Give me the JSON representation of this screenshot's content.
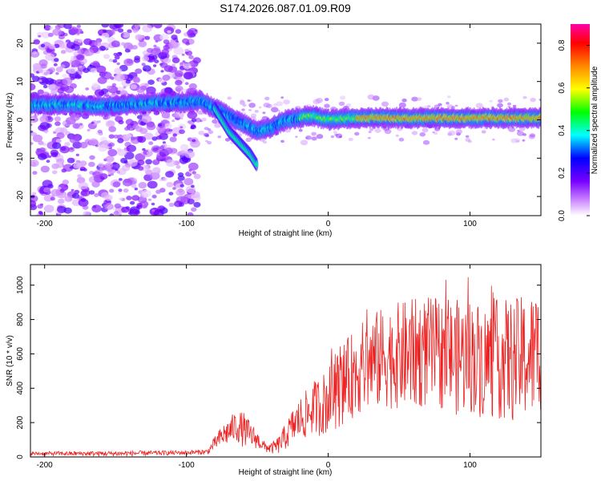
{
  "title": "S174.2026.087.01.09.R09",
  "chart_data": [
    {
      "type": "heatmap",
      "name": "spectrogram",
      "xlabel": "Height of straight line (km)",
      "ylabel": "Frequency (Hz)",
      "xlim": [
        -210,
        150
      ],
      "ylim": [
        -25,
        25
      ],
      "xticks": [
        -200,
        -100,
        0,
        100
      ],
      "yticks": [
        -20,
        -10,
        0,
        10,
        20
      ],
      "xtick_labels": [
        "-200",
        "-100",
        "0",
        "100"
      ],
      "ytick_labels": [
        "-20",
        "-10",
        "0",
        "10",
        "20"
      ],
      "ridge": {
        "x": [
          -200,
          -180,
          -160,
          -140,
          -120,
          -100,
          -90,
          -80,
          -70,
          -60,
          -50,
          -40,
          -30,
          -20,
          -15,
          -10,
          -5,
          0,
          10,
          20,
          50,
          100,
          150
        ],
        "y": [
          4,
          4,
          3.5,
          4,
          4.5,
          4.5,
          5,
          3,
          1,
          -1,
          -3,
          -2,
          0,
          0.5,
          1,
          1,
          0.5,
          0,
          0.3,
          0.5,
          0.5,
          0.5,
          0.5
        ]
      },
      "branch": {
        "x": [
          -80,
          -75,
          -70,
          -65,
          -60,
          -55,
          -50
        ],
        "y": [
          3,
          0,
          -3,
          -5,
          -7,
          -9,
          -12
        ]
      },
      "colorbar": {
        "label": "Normalized spectral amplitude",
        "range": [
          0,
          0.9
        ],
        "ticks": [
          0,
          0.2,
          0.4,
          0.6,
          0.8
        ],
        "tick_labels": [
          "0.0",
          "0.2",
          "0.4",
          "0.6",
          "0.8"
        ],
        "colormap": [
          "#ffffff",
          "#7700ff",
          "#0000ff",
          "#00ffff",
          "#00ff00",
          "#ffff00",
          "#ff8800",
          "#ff0000",
          "#ff00aa"
        ]
      }
    },
    {
      "type": "line",
      "name": "snr",
      "xlabel": "Height of straight line (km)",
      "ylabel": "SNR (10 * v/v)",
      "xlim": [
        -210,
        150
      ],
      "ylim": [
        0,
        1120
      ],
      "xticks": [
        -200,
        -100,
        0,
        100
      ],
      "yticks": [
        0,
        200,
        400,
        600,
        800,
        1000
      ],
      "xtick_labels": [
        "-200",
        "-100",
        "0",
        "100"
      ],
      "ytick_labels": [
        "0",
        "200",
        "400",
        "600",
        "800",
        "1000"
      ],
      "color": "#ee2222",
      "envelope": {
        "x": [
          -210,
          -150,
          -100,
          -85,
          -80,
          -75,
          -70,
          -65,
          -60,
          -55,
          -50,
          -45,
          -40,
          -35,
          -30,
          -25,
          -20,
          -15,
          -10,
          -5,
          0,
          10,
          20,
          30,
          40,
          50,
          60,
          70,
          80,
          90,
          100,
          110,
          120,
          130,
          140,
          150
        ],
        "mean": [
          20,
          20,
          25,
          30,
          80,
          120,
          150,
          180,
          160,
          130,
          100,
          60,
          50,
          70,
          120,
          180,
          220,
          250,
          290,
          300,
          330,
          420,
          500,
          550,
          580,
          590,
          600,
          610,
          600,
          580,
          590,
          560,
          570,
          560,
          580,
          600
        ],
        "amp": [
          8,
          12,
          10,
          12,
          30,
          50,
          60,
          70,
          80,
          60,
          40,
          25,
          25,
          40,
          60,
          80,
          100,
          110,
          120,
          140,
          150,
          180,
          200,
          220,
          230,
          240,
          250,
          250,
          250,
          260,
          260,
          260,
          270,
          280,
          280,
          300
        ]
      }
    }
  ]
}
